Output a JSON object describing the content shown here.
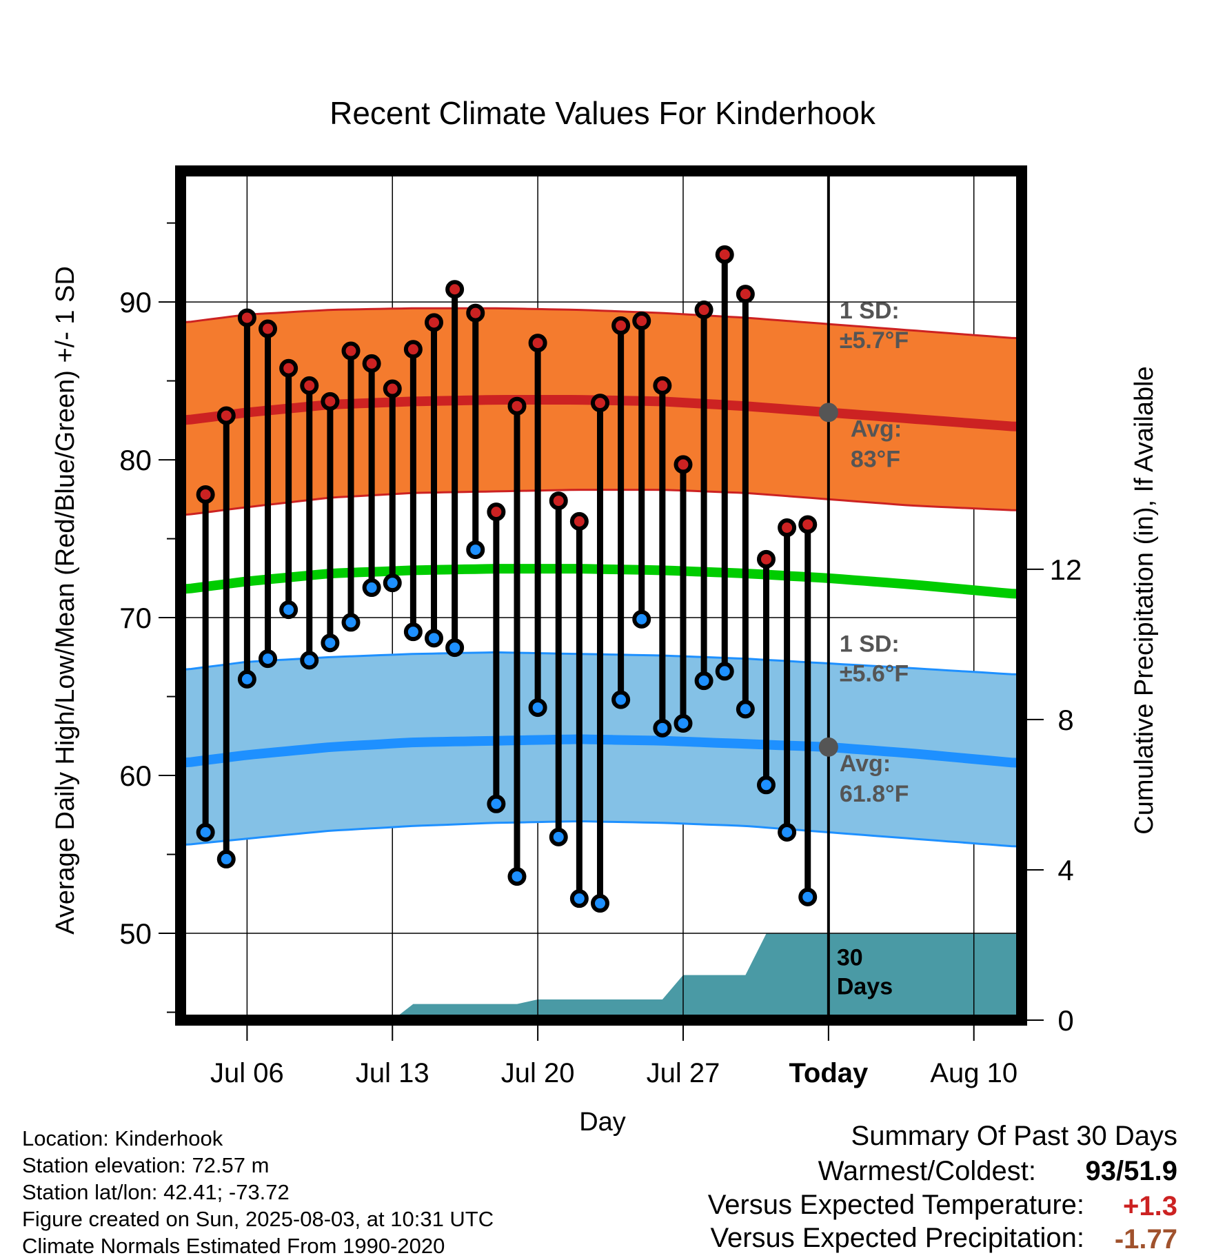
{
  "chart_data": {
    "type": "line",
    "title": "Recent Climate Values For Kinderhook",
    "xlabel": "Day",
    "ylabel": "Average Daily High/Low/Mean (Red/Blue/Green) +/- 1 SD",
    "ylabel_right": "Cumulative Precipitation (in), If Available",
    "ylim": [
      44.5,
      98.3
    ],
    "y_ticks": [
      50,
      60,
      70,
      80,
      90
    ],
    "y2lim": [
      0,
      22.6
    ],
    "y2_ticks": [
      0,
      4,
      8,
      12
    ],
    "x_ticks": [
      {
        "day": 6,
        "label": "Jul 06"
      },
      {
        "day": 13,
        "label": "Jul 13"
      },
      {
        "day": 20,
        "label": "Jul 20"
      },
      {
        "day": 27,
        "label": "Jul 27"
      },
      {
        "day": 34,
        "label": "Today"
      },
      {
        "day": 41,
        "label": "Aug 10"
      }
    ],
    "xlim": [
      2.8,
      43.3
    ],
    "days": [
      4,
      5,
      6,
      7,
      8,
      9,
      10,
      11,
      12,
      13,
      14,
      15,
      16,
      17,
      18,
      19,
      20,
      21,
      22,
      23,
      24,
      25,
      26,
      27,
      28,
      29,
      30,
      31,
      32,
      33
    ],
    "series": [
      {
        "name": "High",
        "color": "#cc2222",
        "values": [
          77.8,
          82.8,
          89.0,
          88.3,
          85.8,
          84.7,
          83.7,
          86.9,
          86.1,
          84.5,
          87.0,
          88.7,
          90.8,
          89.3,
          76.7,
          83.4,
          87.4,
          77.4,
          76.1,
          83.6,
          88.5,
          88.8,
          84.7,
          79.7,
          89.5,
          93.0,
          90.5,
          73.7,
          75.7,
          75.9
        ]
      },
      {
        "name": "Low",
        "color": "#1e90ff",
        "values": [
          56.4,
          54.7,
          66.1,
          67.4,
          70.5,
          67.3,
          68.4,
          69.7,
          71.9,
          72.2,
          69.1,
          68.7,
          68.1,
          74.3,
          58.2,
          53.6,
          64.3,
          56.1,
          52.2,
          51.9,
          64.8,
          69.9,
          63.0,
          63.3,
          66.0,
          66.6,
          64.2,
          59.4,
          56.4,
          52.3
        ]
      }
    ],
    "normals": {
      "days": [
        3,
        6,
        10,
        14,
        18,
        22,
        26,
        30,
        34,
        38,
        43
      ],
      "high_avg": [
        82.5,
        83.0,
        83.5,
        83.7,
        83.8,
        83.8,
        83.7,
        83.4,
        83.0,
        82.6,
        82.1
      ],
      "high_sd_upper": [
        88.7,
        89.2,
        89.5,
        89.6,
        89.6,
        89.5,
        89.3,
        89.0,
        88.6,
        88.2,
        87.7
      ],
      "high_sd_lower": [
        76.5,
        77.0,
        77.6,
        77.9,
        78.0,
        78.1,
        78.1,
        77.9,
        77.5,
        77.1,
        76.8
      ],
      "mean": [
        71.8,
        72.3,
        72.8,
        73.0,
        73.1,
        73.1,
        73.0,
        72.8,
        72.5,
        72.1,
        71.5
      ],
      "low_avg": [
        60.8,
        61.3,
        61.8,
        62.1,
        62.2,
        62.3,
        62.2,
        62.0,
        61.8,
        61.4,
        60.8
      ],
      "low_sd_upper": [
        66.7,
        67.2,
        67.5,
        67.7,
        67.8,
        67.7,
        67.6,
        67.4,
        67.1,
        66.8,
        66.4
      ],
      "low_sd_lower": [
        55.6,
        56.0,
        56.5,
        56.8,
        57.0,
        57.1,
        57.0,
        56.8,
        56.4,
        56.0,
        55.5
      ]
    },
    "colors": {
      "high_band": "#f47b2e",
      "high_line": "#cc2222",
      "low_band": "#84c1e6",
      "low_line": "#1e90ff",
      "mean_line": "#00cc00",
      "precip_fill": "#4a9aa5",
      "annotation_text": "#555555"
    },
    "precipitation_cumulative": [
      {
        "day": 2.8,
        "value": 0
      },
      {
        "day": 13,
        "value": 0
      },
      {
        "day": 14,
        "value": 0.43
      },
      {
        "day": 19,
        "value": 0.43
      },
      {
        "day": 20,
        "value": 0.55
      },
      {
        "day": 26,
        "value": 0.55
      },
      {
        "day": 27,
        "value": 1.2
      },
      {
        "day": 30,
        "value": 1.2
      },
      {
        "day": 31,
        "value": 2.3
      },
      {
        "day": 43.3,
        "value": 2.3
      }
    ],
    "today_day": 34,
    "annotations": {
      "high_sd_label": "1 SD:",
      "high_sd_value": "±5.7°F",
      "high_avg_label": "Avg:",
      "high_avg_value": "83°F",
      "high_avg": 83.0,
      "low_sd_label": "1 SD:",
      "low_sd_value": "±5.6°F",
      "low_avg_label": "Avg:",
      "low_avg_value": "61.8°F",
      "low_avg": 61.8,
      "precip_line1": "30",
      "precip_line2": "Days"
    }
  },
  "footer": {
    "location": "Location: Kinderhook",
    "elevation": "Station elevation: 72.57 m",
    "latlon": "Station lat/lon: 42.41; -73.72",
    "created": "Figure created on Sun, 2025-08-03, at 10:31 UTC",
    "normals": "Climate Normals Estimated From 1990-2020"
  },
  "summary": {
    "title": "Summary Of Past 30 Days",
    "warmest_coldest_label": "Warmest/Coldest:",
    "warmest_coldest_value": "93/51.9",
    "temp_label": "Versus Expected Temperature:",
    "temp_value": "+1.3",
    "temp_color": "#cc2222",
    "precip_label": "Versus Expected Precipitation:",
    "precip_value": "-1.77",
    "precip_color": "#a0522d"
  }
}
